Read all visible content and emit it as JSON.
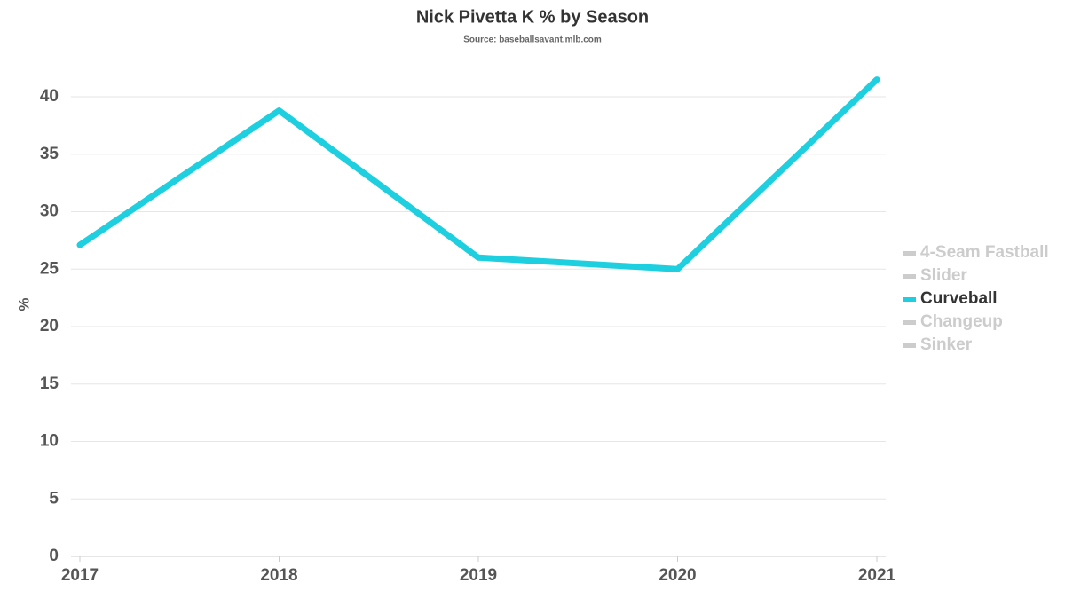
{
  "chart_data": {
    "type": "line",
    "title": "Nick Pivetta K % by Season",
    "subtitle": "Source: baseballsavant.mlb.com",
    "y_label": "%",
    "categories": [
      "2017",
      "2018",
      "2019",
      "2020",
      "2021"
    ],
    "series": [
      {
        "name": "4-Seam Fastball",
        "color": "#cccccc",
        "visible": false,
        "values": [
          null,
          null,
          null,
          null,
          null
        ]
      },
      {
        "name": "Slider",
        "color": "#cccccc",
        "visible": false,
        "values": [
          null,
          null,
          null,
          null,
          null
        ]
      },
      {
        "name": "Curveball",
        "color": "#1ecfe0",
        "visible": true,
        "values": [
          27.1,
          38.8,
          26.0,
          25.0,
          41.5
        ]
      },
      {
        "name": "Changeup",
        "color": "#cccccc",
        "visible": false,
        "values": [
          null,
          null,
          null,
          null,
          null
        ]
      },
      {
        "name": "Sinker",
        "color": "#cccccc",
        "visible": false,
        "values": [
          null,
          null,
          null,
          null,
          null
        ]
      }
    ],
    "ylim": [
      0,
      45
    ],
    "yticks": [
      0,
      5,
      10,
      15,
      20,
      25,
      30,
      35,
      40
    ],
    "grid": true,
    "legend": "right"
  }
}
